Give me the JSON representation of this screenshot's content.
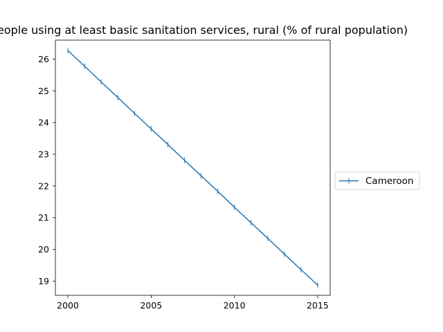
{
  "chart_data": {
    "type": "line",
    "title": "People using at least basic sanitation services, rural (% of rural population)",
    "xlabel": "",
    "ylabel": "",
    "x": [
      2000,
      2001,
      2002,
      2003,
      2004,
      2005,
      2006,
      2007,
      2008,
      2009,
      2010,
      2011,
      2012,
      2013,
      2014,
      2015
    ],
    "series": [
      {
        "name": "Cameroon",
        "color": "#1f77b4",
        "marker": "vline",
        "values": [
          26.27,
          25.78,
          25.28,
          24.79,
          24.29,
          23.8,
          23.31,
          22.81,
          22.32,
          21.83,
          21.33,
          20.84,
          20.35,
          19.85,
          19.36,
          18.87
        ]
      }
    ],
    "xlim": [
      1999.25,
      2015.75
    ],
    "ylim": [
      18.55,
      26.6
    ],
    "xticks": [
      2000,
      2005,
      2010,
      2015
    ],
    "yticks": [
      19,
      20,
      21,
      22,
      23,
      24,
      25,
      26
    ],
    "grid": false,
    "legend_position": "right-outside"
  }
}
